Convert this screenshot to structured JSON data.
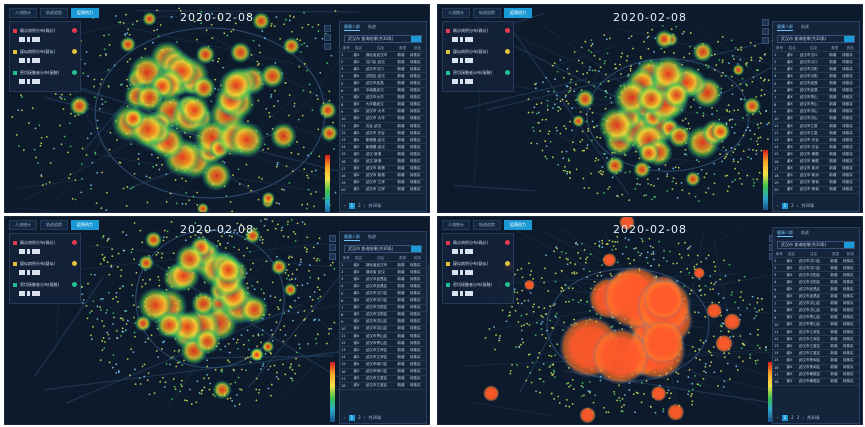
{
  "panels": [
    {
      "date": "2020-02-08",
      "tabs": [
        "人流统计",
        "轨迹追踪",
        "疫情热力"
      ],
      "active_tab": 2,
      "legend": [
        {
          "label": "确诊病例分布(确诊)",
          "color": "#e8394f"
        },
        {
          "label": "疑似病例分布(疑似)",
          "color": "#e0c33a"
        },
        {
          "label": "密切接触者分布(接触)",
          "color": "#1fbf8f"
        }
      ],
      "sidebar": {
        "tabs": [
          "健康人群",
          "轨迹"
        ],
        "search": "武汉市 查询结果(共30条)",
        "headers": [
          "序号",
          "姓名",
          "住址",
          "类型",
          "状态"
        ],
        "rows": [
          [
            "1",
            "谢X",
            "湖北省武汉市",
            "新增",
            "待核实"
          ],
          [
            "2",
            "谢X",
            "汉口区 武汉",
            "新增",
            "待核实"
          ],
          [
            "3",
            "谢X",
            "武汉市汉口",
            "新增",
            "待核实"
          ],
          [
            "4",
            "谢X",
            "汉阳区 武汉",
            "新增",
            "待核实"
          ],
          [
            "5",
            "谢X",
            "武汉市武昌",
            "新增",
            "待核实"
          ],
          [
            "6",
            "谢X",
            "中南路武汉",
            "新增",
            "待核实"
          ],
          [
            "7",
            "谢X",
            "武汉市大华",
            "新增",
            "待核实"
          ],
          [
            "8",
            "谢X",
            "大华路武汉",
            "新增",
            "待核实"
          ],
          [
            "9",
            "谢X",
            "武汉市 大华",
            "新增",
            "待核实"
          ],
          [
            "10",
            "谢X",
            "武汉市 大华",
            "新增",
            "待核实"
          ],
          [
            "11",
            "谢X",
            "光谷 武汉",
            "新增",
            "待核实"
          ],
          [
            "12",
            "谢X",
            "武汉市 光谷",
            "新增",
            "待核实"
          ],
          [
            "13",
            "谢X",
            "新港路 武汉",
            "新增",
            "待核实"
          ],
          [
            "14",
            "谢X",
            "新港路 武汉",
            "新增",
            "待核实"
          ],
          [
            "15",
            "谢X",
            "武汉 新港",
            "新增",
            "待核实"
          ],
          [
            "16",
            "谢X",
            "武汉 新港",
            "新增",
            "待核实"
          ],
          [
            "17",
            "谢X",
            "武汉市 新港",
            "新增",
            "待核实"
          ],
          [
            "18",
            "谢X",
            "武汉市 新港",
            "新增",
            "待核实"
          ],
          [
            "19",
            "谢X",
            "武汉市 江岸",
            "新增",
            "待核实"
          ],
          [
            "20",
            "谢X",
            "武汉市 江岸",
            "新增",
            "待核实"
          ]
        ],
        "pager": {
          "prev": "‹",
          "pages": [
            "1",
            "2"
          ],
          "next": "›",
          "total": "共30条"
        }
      },
      "heatmap": {
        "intensity": "high"
      }
    },
    {
      "date": "2020-02-08",
      "tabs": [
        "人流统计",
        "轨迹追踪",
        "疫情热力"
      ],
      "active_tab": 2,
      "legend": [
        {
          "label": "确诊病例分布(确诊)",
          "color": "#e8394f"
        },
        {
          "label": "疑似病例分布(疑似)",
          "color": "#e0c33a"
        },
        {
          "label": "密切接触者分布(接触)",
          "color": "#1fbf8f"
        }
      ],
      "sidebar": {
        "tabs": [
          "健康人群",
          "轨迹"
        ],
        "search": "武汉市 查询结果(共30条)",
        "headers": [
          "序号",
          "姓名",
          "住址",
          "类型",
          "状态"
        ],
        "rows": [
          [
            "1",
            "谢X",
            "武汉市汉口",
            "新增",
            "待核实"
          ],
          [
            "2",
            "谢X",
            "武汉市汉口",
            "新增",
            "待核实"
          ],
          [
            "3",
            "谢X",
            "武汉市汉阳",
            "新增",
            "待核实"
          ],
          [
            "4",
            "谢X",
            "武汉市汉阳",
            "新增",
            "待核实"
          ],
          [
            "5",
            "谢X",
            "武汉市武昌",
            "新增",
            "待核实"
          ],
          [
            "6",
            "谢X",
            "武汉市武昌",
            "新增",
            "待核实"
          ],
          [
            "7",
            "谢X",
            "武汉市青山",
            "新增",
            "待核实"
          ],
          [
            "8",
            "谢X",
            "武汉市青山",
            "新增",
            "待核实"
          ],
          [
            "9",
            "谢X",
            "武汉市洪山",
            "新增",
            "待核实"
          ],
          [
            "10",
            "谢X",
            "武汉市洪山",
            "新增",
            "待核实"
          ],
          [
            "11",
            "谢X",
            "武汉市江夏",
            "新增",
            "待核实"
          ],
          [
            "12",
            "谢X",
            "武汉市江夏",
            "新增",
            "待核实"
          ],
          [
            "13",
            "谢X",
            "武汉市 光谷",
            "新增",
            "待核实"
          ],
          [
            "14",
            "谢X",
            "武汉市 光谷",
            "新增",
            "待核实"
          ],
          [
            "15",
            "谢X",
            "武汉市 黄陂",
            "新增",
            "待核实"
          ],
          [
            "16",
            "谢X",
            "武汉市 黄陂",
            "新增",
            "待核实"
          ],
          [
            "17",
            "谢X",
            "武汉市 新洲",
            "新增",
            "待核实"
          ],
          [
            "18",
            "谢X",
            "武汉市 新洲",
            "新增",
            "待核实"
          ],
          [
            "19",
            "谢X",
            "武汉市 蔡甸",
            "新增",
            "待核实"
          ],
          [
            "20",
            "谢X",
            "武汉市 蔡甸",
            "新增",
            "待核实"
          ]
        ],
        "pager": {
          "prev": "‹",
          "pages": [
            "1",
            "2"
          ],
          "next": "›",
          "total": "共30条"
        }
      },
      "heatmap": {
        "intensity": "medium"
      }
    },
    {
      "date": "2020-02-08",
      "tabs": [
        "人流统计",
        "轨迹追踪",
        "疫情热力"
      ],
      "active_tab": 2,
      "legend": [
        {
          "label": "确诊病例分布(确诊)",
          "color": "#e8394f"
        },
        {
          "label": "疑似病例分布(疑似)",
          "color": "#e0c33a"
        },
        {
          "label": "密切接触者分布(接触)",
          "color": "#1fbf8f"
        }
      ],
      "sidebar": {
        "tabs": [
          "健康人群",
          "轨迹"
        ],
        "search": "武汉市 查询结果(共30条)",
        "headers": [
          "序号",
          "姓名",
          "住址",
          "类型",
          "状态"
        ],
        "rows": [
          [
            "1",
            "谢X",
            "湖北省武汉市",
            "新增",
            "待核实"
          ],
          [
            "2",
            "谢X",
            "湖北省 武汉",
            "新增",
            "待核实"
          ],
          [
            "3",
            "谢X",
            "武汉市武昌区",
            "新增",
            "待核实"
          ],
          [
            "4",
            "谢X",
            "武汉市武昌区",
            "新增",
            "待核实"
          ],
          [
            "5",
            "谢X",
            "武汉市汉口区",
            "新增",
            "待核实"
          ],
          [
            "6",
            "谢X",
            "武汉市汉口区",
            "新增",
            "待核实"
          ],
          [
            "7",
            "谢X",
            "武汉市汉阳区",
            "新增",
            "待核实"
          ],
          [
            "8",
            "谢X",
            "武汉市汉阳区",
            "新增",
            "待核实"
          ],
          [
            "9",
            "谢X",
            "武汉市洪山区",
            "新增",
            "待核实"
          ],
          [
            "10",
            "谢X",
            "武汉市洪山区",
            "新增",
            "待核实"
          ],
          [
            "11",
            "谢X",
            "武汉市青山区",
            "新增",
            "待核实"
          ],
          [
            "12",
            "谢X",
            "武汉市青山区",
            "新增",
            "待核实"
          ],
          [
            "13",
            "谢X",
            "武汉市江岸区",
            "新增",
            "待核实"
          ],
          [
            "14",
            "谢X",
            "武汉市江岸区",
            "新增",
            "待核实"
          ],
          [
            "15",
            "谢X",
            "武汉市硚口区",
            "新增",
            "待核实"
          ],
          [
            "16",
            "谢X",
            "武汉市硚口区",
            "新增",
            "待核实"
          ],
          [
            "17",
            "谢X",
            "武汉市江夏区",
            "新增",
            "待核实"
          ],
          [
            "18",
            "谢X",
            "武汉市江夏区",
            "新增",
            "待核实"
          ]
        ],
        "pager": {
          "prev": "‹",
          "pages": [
            "1",
            "2"
          ],
          "next": "›",
          "total": "共30条"
        }
      },
      "heatmap": {
        "intensity": "medium"
      }
    },
    {
      "date": "2020-02-08",
      "tabs": [
        "人流统计",
        "轨迹追踪",
        "疫情热力"
      ],
      "active_tab": 2,
      "legend": [
        {
          "label": "确诊病例分布(确诊)",
          "color": "#e8394f"
        },
        {
          "label": "疑似病例分布(疑似)",
          "color": "#e0c33a"
        },
        {
          "label": "密切接触者分布(接触)",
          "color": "#1fbf8f"
        }
      ],
      "sidebar": {
        "tabs": [
          "健康人群",
          "轨迹"
        ],
        "search": "武汉市 查询结果(共30条)",
        "headers": [
          "序号",
          "姓名",
          "住址",
          "类型",
          "状态"
        ],
        "rows": [
          [
            "1",
            "谢X",
            "武汉市汉口区",
            "新增",
            "待核实"
          ],
          [
            "2",
            "谢X",
            "武汉市汉口区",
            "新增",
            "待核实"
          ],
          [
            "3",
            "谢X",
            "武汉市汉阳区",
            "新增",
            "待核实"
          ],
          [
            "4",
            "谢X",
            "武汉市汉阳区",
            "新增",
            "待核实"
          ],
          [
            "5",
            "谢X",
            "武汉市武昌区",
            "新增",
            "待核实"
          ],
          [
            "6",
            "谢X",
            "武汉市武昌区",
            "新增",
            "待核实"
          ],
          [
            "7",
            "谢X",
            "武汉市洪山区",
            "新增",
            "待核实"
          ],
          [
            "8",
            "谢X",
            "武汉市洪山区",
            "新增",
            "待核实"
          ],
          [
            "9",
            "谢X",
            "武汉市青山区",
            "新增",
            "待核实"
          ],
          [
            "10",
            "谢X",
            "武汉市青山区",
            "新增",
            "待核实"
          ],
          [
            "11",
            "谢X",
            "武汉市江岸区",
            "新增",
            "待核实"
          ],
          [
            "12",
            "谢X",
            "武汉市江岸区",
            "新增",
            "待核实"
          ],
          [
            "13",
            "谢X",
            "武汉市江夏区",
            "新增",
            "待核实"
          ],
          [
            "14",
            "谢X",
            "武汉市江夏区",
            "新增",
            "待核实"
          ],
          [
            "15",
            "谢X",
            "武汉市蔡甸区",
            "新增",
            "待核实"
          ],
          [
            "16",
            "谢X",
            "武汉市蔡甸区",
            "新增",
            "待核实"
          ],
          [
            "17",
            "谢X",
            "武汉市黄陂区",
            "新增",
            "待核实"
          ],
          [
            "18",
            "谢X",
            "武汉市黄陂区",
            "新增",
            "待核实"
          ]
        ],
        "pager": {
          "prev": "‹",
          "pages": [
            "1",
            "2",
            "3"
          ],
          "next": "›",
          "total": "共30条"
        }
      },
      "heatmap": {
        "intensity": "saturated"
      }
    }
  ],
  "colors": {
    "map_bg": "#0d1a2b",
    "accent": "#1b9ad6",
    "heat_scale": [
      "#1b4f8a",
      "#2aa7c9",
      "#3cc24a",
      "#f7e34a",
      "#f9a825",
      "#d7191c"
    ]
  }
}
